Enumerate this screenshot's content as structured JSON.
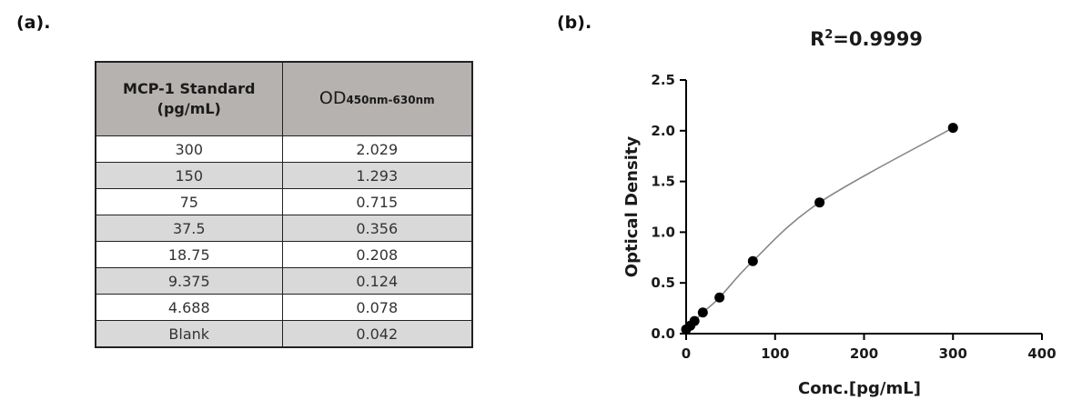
{
  "panels": {
    "a_label": "(a).",
    "b_label": "(b)."
  },
  "table": {
    "header_col1_line1": "MCP-1 Standard",
    "header_col1_line2": "(pg/mL)",
    "header_col2_main": "OD",
    "header_col2_sub": "450nm-630nm",
    "rows": [
      {
        "conc": "300",
        "od": "2.029"
      },
      {
        "conc": "150",
        "od": "1.293"
      },
      {
        "conc": "75",
        "od": "0.715"
      },
      {
        "conc": "37.5",
        "od": "0.356"
      },
      {
        "conc": "18.75",
        "od": "0.208"
      },
      {
        "conc": "9.375",
        "od": "0.124"
      },
      {
        "conc": "4.688",
        "od": "0.078"
      },
      {
        "conc": "Blank",
        "od": "0.042"
      }
    ]
  },
  "chart_data": {
    "type": "scatter",
    "title_prefix": "R",
    "title_sup": "2",
    "title_suffix": "=0.9999",
    "xlabel": "Conc.[pg/mL]",
    "ylabel": "Optical Density",
    "xlim": [
      0,
      400
    ],
    "ylim": [
      0,
      2.5
    ],
    "xticks": [
      0,
      100,
      200,
      300,
      400
    ],
    "yticks": [
      0.0,
      0.5,
      1.0,
      1.5,
      2.0,
      2.5
    ],
    "xtick_labels": [
      "0",
      "100",
      "200",
      "300",
      "400"
    ],
    "ytick_labels": [
      "0.0",
      "0.5",
      "1.0",
      "1.5",
      "2.0",
      "2.5"
    ],
    "grid": false,
    "points": [
      {
        "x": 0,
        "y": 0.042
      },
      {
        "x": 4.688,
        "y": 0.078
      },
      {
        "x": 9.375,
        "y": 0.124
      },
      {
        "x": 18.75,
        "y": 0.208
      },
      {
        "x": 37.5,
        "y": 0.356
      },
      {
        "x": 75,
        "y": 0.715
      },
      {
        "x": 150,
        "y": 1.293
      },
      {
        "x": 300,
        "y": 2.029
      }
    ],
    "fit_line": true,
    "colors": {
      "points": "#000000",
      "fit": "#888888",
      "axes": "#000000"
    }
  }
}
